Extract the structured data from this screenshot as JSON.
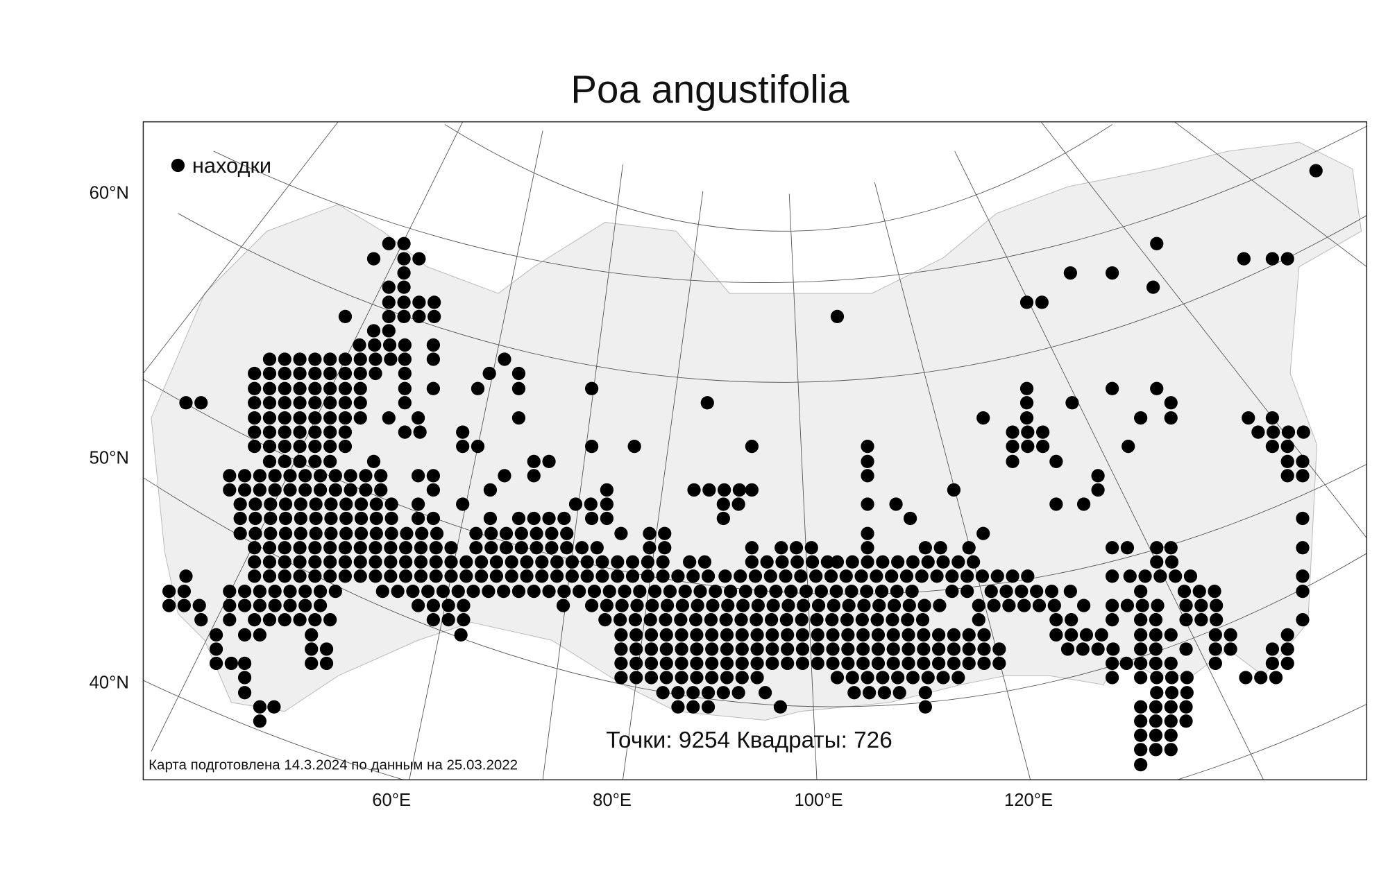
{
  "title": "Poa angustifolia",
  "legend": "находки",
  "stats": "Точки: 9254 Квадраты: 726",
  "footer": "Карта подготовлена 14.3.2024 по данным на 25.03.2022",
  "lat_labels": [
    "60°N",
    "50°N",
    "40°N"
  ],
  "lon_labels": [
    "60°E",
    "80°E",
    "100°E",
    "120°E"
  ]
}
